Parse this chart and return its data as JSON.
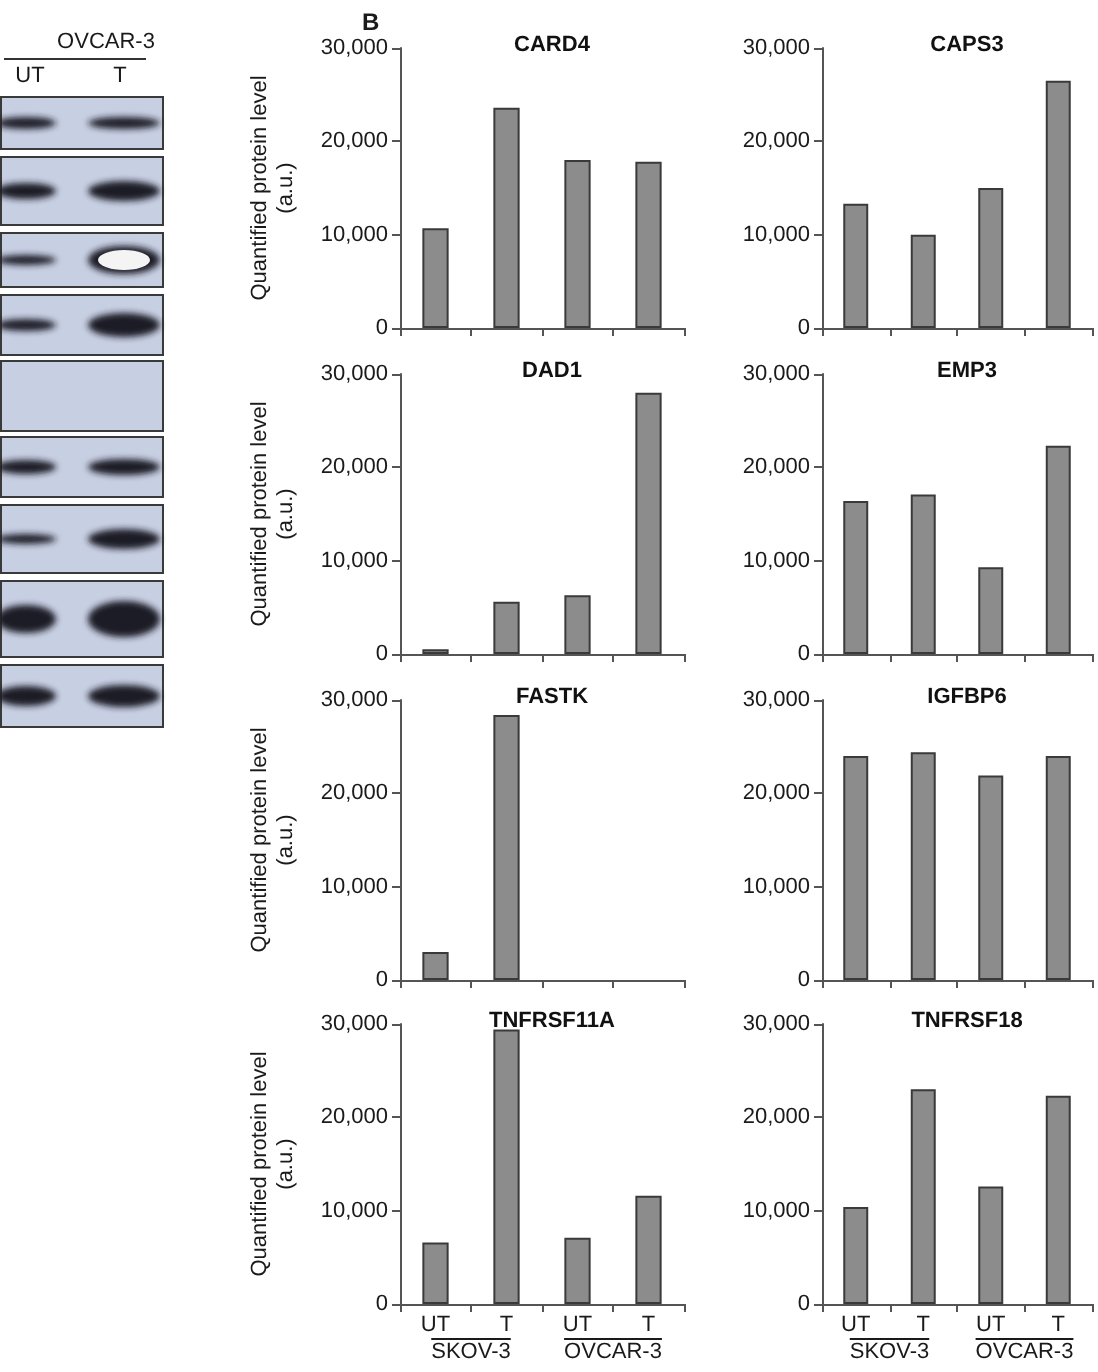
{
  "chart_data": [
    {
      "type": "other",
      "title": "OVCAR-3",
      "categories": [
        "UT",
        "T"
      ]
    },
    {
      "type": "bar",
      "title": "CARD4",
      "ylabel": "Quantified protein level (a.u.)",
      "categories": [
        null,
        null,
        null,
        null
      ],
      "values": [
        10700,
        23600,
        18000,
        17800
      ],
      "color": "#8c8c8c",
      "ylim": [
        0,
        30000
      ],
      "yticks": [
        {
          "value": 0,
          "label": "0"
        },
        {
          "value": 10000,
          "label": "10,000"
        },
        {
          "value": 20000,
          "label": "20,000"
        },
        {
          "value": 30000,
          "label": "30,000"
        }
      ],
      "tick_labels": "y",
      "annotations": [
        "B"
      ]
    },
    {
      "type": "bar",
      "title": "CAPS3",
      "categories": [
        null,
        null,
        null,
        null
      ],
      "values": [
        13300,
        10000,
        15000,
        26500
      ],
      "color": "#8c8c8c",
      "ylim": [
        0,
        30000
      ],
      "yticks": [
        {
          "value": 0,
          "label": "0"
        },
        {
          "value": 10000,
          "label": "10,000"
        },
        {
          "value": 20000,
          "label": "20,000"
        },
        {
          "value": 30000,
          "label": "30,000"
        }
      ],
      "tick_labels": "y"
    },
    {
      "type": "bar",
      "title": "DAD1",
      "ylabel": "Quantified protein level (a.u.)",
      "categories": [
        null,
        null,
        null,
        null
      ],
      "values": [
        500,
        5600,
        6300,
        28000
      ],
      "color": "#8c8c8c",
      "ylim": [
        0,
        30000
      ],
      "yticks": [
        {
          "value": 0,
          "label": "0"
        },
        {
          "value": 10000,
          "label": "10,000"
        },
        {
          "value": 20000,
          "label": "20,000"
        },
        {
          "value": 30000,
          "label": "30,000"
        }
      ],
      "tick_labels": "y"
    },
    {
      "type": "bar",
      "title": "EMP3",
      "categories": [
        null,
        null,
        null,
        null
      ],
      "values": [
        16400,
        17100,
        9300,
        22300
      ],
      "color": "#8c8c8c",
      "ylim": [
        0,
        30000
      ],
      "yticks": [
        {
          "value": 0,
          "label": "0"
        },
        {
          "value": 10000,
          "label": "10,000"
        },
        {
          "value": 20000,
          "label": "20,000"
        },
        {
          "value": 30000,
          "label": "30,000"
        }
      ],
      "tick_labels": "y"
    },
    {
      "type": "bar",
      "title": "FASTK",
      "ylabel": "Quantified protein level (a.u.)",
      "categories": [
        null,
        null,
        null,
        null
      ],
      "values": [
        3000,
        28400,
        null,
        null
      ],
      "color": "#8c8c8c",
      "ylim": [
        0,
        30000
      ],
      "yticks": [
        {
          "value": 0,
          "label": "0"
        },
        {
          "value": 10000,
          "label": "10,000"
        },
        {
          "value": 20000,
          "label": "20,000"
        },
        {
          "value": 30000,
          "label": "30,000"
        }
      ],
      "tick_labels": "y"
    },
    {
      "type": "bar",
      "title": "IGFBP6",
      "categories": [
        null,
        null,
        null,
        null
      ],
      "values": [
        24000,
        24400,
        21900,
        24000
      ],
      "color": "#8c8c8c",
      "ylim": [
        0,
        30000
      ],
      "yticks": [
        {
          "value": 0,
          "label": "0"
        },
        {
          "value": 10000,
          "label": "10,000"
        },
        {
          "value": 20000,
          "label": "20,000"
        },
        {
          "value": 30000,
          "label": "30,000"
        }
      ],
      "tick_labels": "y"
    },
    {
      "type": "bar",
      "title": "TNFRSF11A",
      "ylabel": "Quantified protein level (a.u.)",
      "categories": [
        "UT",
        "T",
        "UT",
        "T"
      ],
      "values": [
        6600,
        29400,
        7100,
        11600
      ],
      "color": "#8c8c8c",
      "ylim": [
        0,
        30000
      ],
      "yticks": [
        {
          "value": 0,
          "label": "0"
        },
        {
          "value": 10000,
          "label": "10,000"
        },
        {
          "value": 20000,
          "label": "20,000"
        },
        {
          "value": 30000,
          "label": "30,000"
        }
      ],
      "annotations": [
        "SKOV-3",
        "OVCAR-3"
      ]
    },
    {
      "type": "bar",
      "title": "TNFRSF18",
      "categories": [
        "UT",
        "T",
        "UT",
        "T"
      ],
      "values": [
        10400,
        23000,
        12600,
        22300
      ],
      "color": "#8c8c8c",
      "ylim": [
        0,
        30000
      ],
      "yticks": [
        {
          "value": 0,
          "label": "0"
        },
        {
          "value": 10000,
          "label": "10,000"
        },
        {
          "value": 20000,
          "label": "20,000"
        },
        {
          "value": 30000,
          "label": "30,000"
        }
      ],
      "annotations": [
        "SKOV-3",
        "OVCAR-3"
      ]
    }
  ]
}
